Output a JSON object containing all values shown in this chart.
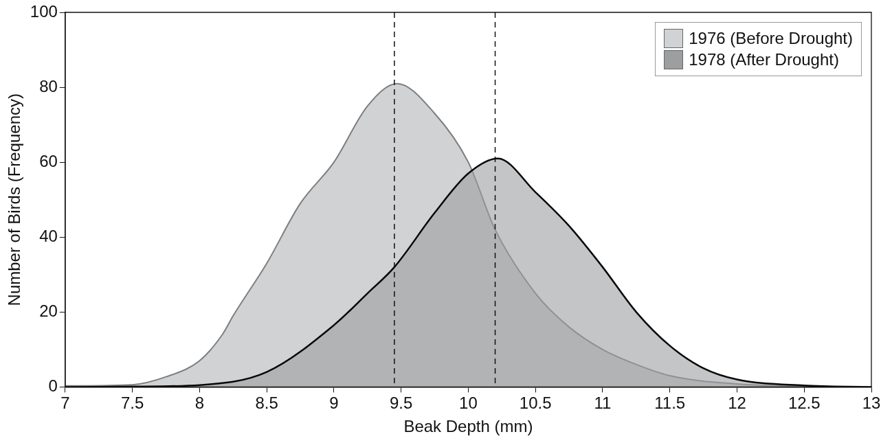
{
  "chart_data": {
    "type": "area",
    "xlabel": "Beak Depth (mm)",
    "ylabel": "Number of Birds (Frequency)",
    "x": [
      7,
      7.5,
      7.75,
      8,
      8.17,
      8.25,
      8.5,
      8.75,
      9,
      9.25,
      9.47,
      9.75,
      10,
      10.2,
      10.5,
      10.75,
      11,
      11.25,
      11.5,
      12,
      12.5,
      13
    ],
    "series": [
      {
        "name": "1976 (Before Drought)",
        "color": "#d0d2d3",
        "values": [
          0.3,
          0.6,
          2.7,
          7,
          14,
          19,
          33,
          49,
          60,
          75,
          81,
          73,
          60,
          42,
          25,
          16,
          10,
          6,
          3,
          0.8,
          0.2,
          0
        ]
      },
      {
        "name": "1978 (After Drought)",
        "color": "#9c9ea0",
        "x": [
          7,
          7.5,
          8,
          8.5,
          9,
          9.25,
          9.45,
          9.75,
          10,
          10.22,
          10.5,
          10.75,
          11,
          11.25,
          11.5,
          11.75,
          12,
          12.5,
          13
        ],
        "values": [
          0,
          0.1,
          0.5,
          4,
          16.5,
          25,
          32,
          46.5,
          57,
          61,
          52,
          43,
          32,
          20,
          11,
          5,
          2,
          0.4,
          0
        ]
      }
    ],
    "xlim": [
      7,
      13
    ],
    "xticks": [
      7,
      7.5,
      8,
      8.5,
      9,
      9.5,
      10,
      10.5,
      11,
      11.5,
      12,
      12.5,
      13
    ],
    "ylim": [
      0,
      100
    ],
    "yticks": [
      0,
      20,
      40,
      60,
      80,
      100
    ],
    "ref_lines": [
      {
        "axis": "x",
        "value": 9.45,
        "line_style": "dashed"
      },
      {
        "axis": "x",
        "value": 10.2,
        "line_style": "dashed"
      }
    ],
    "grid": false,
    "legend": "top right",
    "marker": "none",
    "line_style": "solid"
  }
}
